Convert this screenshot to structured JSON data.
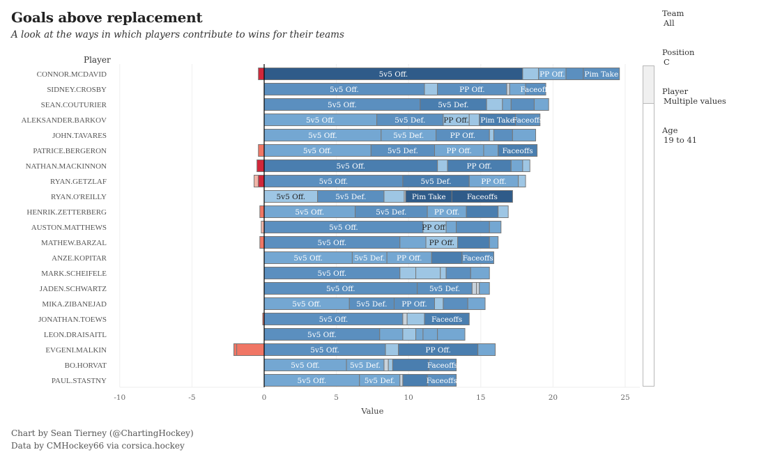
{
  "header": {
    "title": "Goals above replacement",
    "subtitle": "A look at the ways in which players contribute to wins for their teams"
  },
  "filters": [
    {
      "label": "Team",
      "value": "All"
    },
    {
      "label": "Position",
      "value": "C"
    },
    {
      "label": "Player",
      "value": "Multiple values"
    },
    {
      "label": "Age",
      "value": "19 to 41"
    }
  ],
  "footer": {
    "line1": "Chart by Sean Tierney (@ChartingHockey)",
    "line2": "Data by CMHockey66 via corsica.hockey"
  },
  "colors": {
    "dark_blue": "#2f5b89",
    "mid_blue": "#4a7eaf",
    "blue": "#5b8fbf",
    "light_blue": "#74a7d2",
    "pale_blue": "#9ec6e4",
    "grey": "#c9d3dc",
    "red": "#d0273a",
    "salmon": "#f07665",
    "pink": "#f0b5a8",
    "border": "#777777"
  },
  "chart_data": {
    "type": "bar",
    "orientation": "horizontal",
    "stacked": true,
    "title": "Goals above replacement",
    "xlabel": "Value",
    "ylabel": "Player",
    "xlim": [
      -11,
      26.8
    ],
    "xticks": [
      -10,
      -5,
      0,
      5,
      10,
      15,
      20,
      25
    ],
    "grid": true,
    "legend": "none",
    "categories": [
      "CONNOR.MCDAVID",
      "SIDNEY.CROSBY",
      "SEAN.COUTURIER",
      "ALEKSANDER.BARKOV",
      "JOHN.TAVARES",
      "PATRICE.BERGERON",
      "NATHAN.MACKINNON",
      "RYAN.GETZLAF",
      "RYAN.O'REILLY",
      "HENRIK.ZETTERBERG",
      "AUSTON.MATTHEWS",
      "MATHEW.BARZAL",
      "ANZE.KOPITAR",
      "MARK.SCHEIFELE",
      "JADEN.SCHWARTZ",
      "MIKA.ZIBANEJAD",
      "JONATHAN.TOEWS",
      "LEON.DRAISAITL",
      "EVGENI.MALKIN",
      "BO.HORVAT",
      "PAUL.STASTNY"
    ],
    "rows": [
      {
        "player": "CONNOR.MCDAVID",
        "segments": [
          {
            "from": -0.4,
            "to": 0,
            "c": "red",
            "label": ""
          },
          {
            "from": 0,
            "to": 17.9,
            "c": "dark_blue",
            "label": "5v5 Off."
          },
          {
            "from": 17.9,
            "to": 19.0,
            "c": "pale_blue",
            "label": ""
          },
          {
            "from": 19.0,
            "to": 20.9,
            "c": "light_blue",
            "label": "PP Off."
          },
          {
            "from": 20.9,
            "to": 22.1,
            "c": "blue",
            "label": ""
          },
          {
            "from": 22.1,
            "to": 24.6,
            "c": "blue",
            "label": "Pim Take"
          }
        ]
      },
      {
        "player": "SIDNEY.CROSBY",
        "segments": [
          {
            "from": 0,
            "to": 11.1,
            "c": "blue",
            "label": "5v5 Off."
          },
          {
            "from": 11.1,
            "to": 12.0,
            "c": "pale_blue",
            "label": ""
          },
          {
            "from": 12.0,
            "to": 16.8,
            "c": "blue",
            "label": "PP Off."
          },
          {
            "from": 16.8,
            "to": 17.0,
            "c": "grey",
            "label": ""
          },
          {
            "from": 17.0,
            "to": 18.1,
            "c": "light_blue",
            "label": ""
          },
          {
            "from": 18.1,
            "to": 19.5,
            "c": "blue",
            "label": "Faceoffs"
          }
        ]
      },
      {
        "player": "SEAN.COUTURIER",
        "segments": [
          {
            "from": 0,
            "to": 10.8,
            "c": "blue",
            "label": "5v5 Off."
          },
          {
            "from": 10.8,
            "to": 15.4,
            "c": "mid_blue",
            "label": "5v5 Def."
          },
          {
            "from": 15.4,
            "to": 16.5,
            "c": "pale_blue",
            "label": ""
          },
          {
            "from": 16.5,
            "to": 17.1,
            "c": "light_blue",
            "label": ""
          },
          {
            "from": 17.1,
            "to": 18.7,
            "c": "blue",
            "label": ""
          },
          {
            "from": 18.7,
            "to": 19.7,
            "c": "light_blue",
            "label": ""
          }
        ]
      },
      {
        "player": "ALEKSANDER.BARKOV",
        "segments": [
          {
            "from": 0,
            "to": 7.8,
            "c": "light_blue",
            "label": "5v5 Off."
          },
          {
            "from": 7.8,
            "to": 12.4,
            "c": "blue",
            "label": "5v5 Def."
          },
          {
            "from": 12.4,
            "to": 14.2,
            "c": "pale_blue",
            "label": "PP Off."
          },
          {
            "from": 14.2,
            "to": 14.9,
            "c": "pale_blue",
            "label": ""
          },
          {
            "from": 14.9,
            "to": 17.4,
            "c": "mid_blue",
            "label": "Pim Take"
          },
          {
            "from": 17.4,
            "to": 19.1,
            "c": "blue",
            "label": "Faceoffs"
          }
        ]
      },
      {
        "player": "JOHN.TAVARES",
        "segments": [
          {
            "from": 0,
            "to": 8.1,
            "c": "light_blue",
            "label": "5v5 Off."
          },
          {
            "from": 8.1,
            "to": 11.9,
            "c": "light_blue",
            "label": "5v5 Def."
          },
          {
            "from": 11.9,
            "to": 15.6,
            "c": "blue",
            "label": "PP Off."
          },
          {
            "from": 15.6,
            "to": 15.9,
            "c": "pale_blue",
            "label": ""
          },
          {
            "from": 15.9,
            "to": 17.2,
            "c": "blue",
            "label": ""
          },
          {
            "from": 17.2,
            "to": 18.8,
            "c": "light_blue",
            "label": ""
          }
        ]
      },
      {
        "player": "PATRICE.BERGERON",
        "segments": [
          {
            "from": -0.4,
            "to": 0,
            "c": "salmon",
            "label": ""
          },
          {
            "from": 0,
            "to": 7.4,
            "c": "light_blue",
            "label": "5v5 Off."
          },
          {
            "from": 7.4,
            "to": 11.8,
            "c": "blue",
            "label": "5v5 Def."
          },
          {
            "from": 11.8,
            "to": 15.2,
            "c": "light_blue",
            "label": "PP Off."
          },
          {
            "from": 15.2,
            "to": 16.2,
            "c": "light_blue",
            "label": ""
          },
          {
            "from": 16.2,
            "to": 18.9,
            "c": "mid_blue",
            "label": "Faceoffs"
          }
        ]
      },
      {
        "player": "NATHAN.MACKINNON",
        "segments": [
          {
            "from": -0.5,
            "to": 0,
            "c": "red",
            "label": ""
          },
          {
            "from": 0,
            "to": 12.0,
            "c": "mid_blue",
            "label": "5v5 Off."
          },
          {
            "from": 12.0,
            "to": 12.7,
            "c": "pale_blue",
            "label": ""
          },
          {
            "from": 12.7,
            "to": 17.1,
            "c": "mid_blue",
            "label": "PP Off."
          },
          {
            "from": 17.1,
            "to": 17.9,
            "c": "light_blue",
            "label": ""
          },
          {
            "from": 17.9,
            "to": 18.4,
            "c": "pale_blue",
            "label": ""
          }
        ]
      },
      {
        "player": "RYAN.GETZLAF",
        "segments": [
          {
            "from": -0.7,
            "to": -0.4,
            "c": "pink",
            "label": ""
          },
          {
            "from": -0.4,
            "to": 0,
            "c": "red",
            "label": ""
          },
          {
            "from": 0,
            "to": 9.6,
            "c": "blue",
            "label": "5v5 Off."
          },
          {
            "from": 9.6,
            "to": 14.2,
            "c": "mid_blue",
            "label": "5v5 Def."
          },
          {
            "from": 14.2,
            "to": 17.6,
            "c": "light_blue",
            "label": "PP Off."
          },
          {
            "from": 17.6,
            "to": 18.1,
            "c": "pale_blue",
            "label": ""
          }
        ]
      },
      {
        "player": "RYAN.O'REILLY",
        "segments": [
          {
            "from": 0,
            "to": 3.7,
            "c": "pale_blue",
            "label": "5v5 Off."
          },
          {
            "from": 3.7,
            "to": 8.3,
            "c": "blue",
            "label": "5v5 Def."
          },
          {
            "from": 8.3,
            "to": 9.7,
            "c": "pale_blue",
            "label": ""
          },
          {
            "from": 9.7,
            "to": 9.8,
            "c": "grey",
            "label": ""
          },
          {
            "from": 9.8,
            "to": 13.0,
            "c": "dark_blue",
            "label": "Pim Take"
          },
          {
            "from": 13.0,
            "to": 17.2,
            "c": "dark_blue",
            "label": "Faceoffs"
          }
        ]
      },
      {
        "player": "HENRIK.ZETTERBERG",
        "segments": [
          {
            "from": -0.3,
            "to": 0,
            "c": "salmon",
            "label": ""
          },
          {
            "from": 0,
            "to": 6.3,
            "c": "light_blue",
            "label": "5v5 Off."
          },
          {
            "from": 6.3,
            "to": 11.3,
            "c": "blue",
            "label": "5v5 Def."
          },
          {
            "from": 11.3,
            "to": 14.0,
            "c": "light_blue",
            "label": "PP Off."
          },
          {
            "from": 14.0,
            "to": 16.2,
            "c": "mid_blue",
            "label": ""
          },
          {
            "from": 16.2,
            "to": 16.9,
            "c": "pale_blue",
            "label": ""
          }
        ]
      },
      {
        "player": "AUSTON.MATTHEWS",
        "segments": [
          {
            "from": -0.2,
            "to": 0,
            "c": "pink",
            "label": ""
          },
          {
            "from": 0,
            "to": 11.0,
            "c": "blue",
            "label": "5v5 Off."
          },
          {
            "from": 11.0,
            "to": 12.6,
            "c": "pale_blue",
            "label": "PP Off."
          },
          {
            "from": 12.6,
            "to": 13.3,
            "c": "light_blue",
            "label": ""
          },
          {
            "from": 13.3,
            "to": 15.6,
            "c": "blue",
            "label": ""
          },
          {
            "from": 15.6,
            "to": 16.4,
            "c": "light_blue",
            "label": ""
          }
        ]
      },
      {
        "player": "MATHEW.BARZAL",
        "segments": [
          {
            "from": -0.3,
            "to": 0,
            "c": "salmon",
            "label": ""
          },
          {
            "from": 0,
            "to": 9.4,
            "c": "blue",
            "label": "5v5 Off."
          },
          {
            "from": 9.4,
            "to": 11.2,
            "c": "light_blue",
            "label": ""
          },
          {
            "from": 11.2,
            "to": 13.4,
            "c": "pale_blue",
            "label": "PP Off."
          },
          {
            "from": 13.4,
            "to": 15.6,
            "c": "mid_blue",
            "label": ""
          },
          {
            "from": 15.6,
            "to": 16.2,
            "c": "light_blue",
            "label": ""
          }
        ]
      },
      {
        "player": "ANZE.KOPITAR",
        "segments": [
          {
            "from": 0,
            "to": 6.1,
            "c": "light_blue",
            "label": "5v5 Off."
          },
          {
            "from": 6.1,
            "to": 8.5,
            "c": "light_blue",
            "label": "5v5 Def."
          },
          {
            "from": 8.5,
            "to": 11.6,
            "c": "light_blue",
            "label": "PP Off."
          },
          {
            "from": 11.6,
            "to": 13.7,
            "c": "mid_blue",
            "label": ""
          },
          {
            "from": 13.7,
            "to": 15.9,
            "c": "blue",
            "label": "Faceoffs"
          }
        ]
      },
      {
        "player": "MARK.SCHEIFELE",
        "segments": [
          {
            "from": 0,
            "to": 9.4,
            "c": "blue",
            "label": "5v5 Off."
          },
          {
            "from": 9.4,
            "to": 10.5,
            "c": "pale_blue",
            "label": ""
          },
          {
            "from": 10.5,
            "to": 12.2,
            "c": "pale_blue",
            "label": ""
          },
          {
            "from": 12.2,
            "to": 12.6,
            "c": "pale_blue",
            "label": ""
          },
          {
            "from": 12.6,
            "to": 14.3,
            "c": "blue",
            "label": ""
          },
          {
            "from": 14.3,
            "to": 15.6,
            "c": "light_blue",
            "label": ""
          }
        ]
      },
      {
        "player": "JADEN.SCHWARTZ",
        "segments": [
          {
            "from": 0,
            "to": 10.6,
            "c": "blue",
            "label": "5v5 Off."
          },
          {
            "from": 10.6,
            "to": 14.4,
            "c": "blue",
            "label": "5v5 Def."
          },
          {
            "from": 14.4,
            "to": 14.7,
            "c": "grey",
            "label": ""
          },
          {
            "from": 14.7,
            "to": 14.9,
            "c": "grey",
            "label": ""
          },
          {
            "from": 14.9,
            "to": 15.6,
            "c": "light_blue",
            "label": ""
          }
        ]
      },
      {
        "player": "MIKA.ZIBANEJAD",
        "segments": [
          {
            "from": 0,
            "to": 5.9,
            "c": "light_blue",
            "label": "5v5 Off."
          },
          {
            "from": 5.9,
            "to": 9.0,
            "c": "blue",
            "label": "5v5 Def."
          },
          {
            "from": 9.0,
            "to": 11.8,
            "c": "blue",
            "label": "PP Off."
          },
          {
            "from": 11.8,
            "to": 12.4,
            "c": "pale_blue",
            "label": ""
          },
          {
            "from": 12.4,
            "to": 14.1,
            "c": "blue",
            "label": ""
          },
          {
            "from": 14.1,
            "to": 15.3,
            "c": "light_blue",
            "label": ""
          }
        ]
      },
      {
        "player": "JONATHAN.TOEWS",
        "segments": [
          {
            "from": -0.1,
            "to": 0,
            "c": "salmon",
            "label": ""
          },
          {
            "from": 0,
            "to": 9.6,
            "c": "blue",
            "label": "5v5 Off."
          },
          {
            "from": 9.6,
            "to": 9.9,
            "c": "grey",
            "label": ""
          },
          {
            "from": 9.9,
            "to": 11.1,
            "c": "pale_blue",
            "label": ""
          },
          {
            "from": 11.1,
            "to": 14.2,
            "c": "mid_blue",
            "label": "Faceoffs"
          }
        ]
      },
      {
        "player": "LEON.DRAISAITL",
        "segments": [
          {
            "from": 0,
            "to": 8.0,
            "c": "blue",
            "label": "5v5 Off."
          },
          {
            "from": 8.0,
            "to": 9.6,
            "c": "light_blue",
            "label": ""
          },
          {
            "from": 9.6,
            "to": 10.5,
            "c": "pale_blue",
            "label": ""
          },
          {
            "from": 10.5,
            "to": 11.0,
            "c": "light_blue",
            "label": ""
          },
          {
            "from": 11.0,
            "to": 12.0,
            "c": "light_blue",
            "label": ""
          },
          {
            "from": 12.0,
            "to": 13.9,
            "c": "light_blue",
            "label": ""
          }
        ]
      },
      {
        "player": "EVGENI.MALKIN",
        "segments": [
          {
            "from": -2.1,
            "to": -1.9,
            "c": "salmon",
            "label": ""
          },
          {
            "from": -1.9,
            "to": 0,
            "c": "salmon",
            "label": ""
          },
          {
            "from": 0,
            "to": 8.4,
            "c": "blue",
            "label": "5v5 Off."
          },
          {
            "from": 8.4,
            "to": 9.3,
            "c": "pale_blue",
            "label": ""
          },
          {
            "from": 9.3,
            "to": 14.8,
            "c": "mid_blue",
            "label": "PP Off."
          },
          {
            "from": 14.8,
            "to": 16.0,
            "c": "light_blue",
            "label": ""
          }
        ]
      },
      {
        "player": "BO.HORVAT",
        "segments": [
          {
            "from": 0,
            "to": 5.7,
            "c": "light_blue",
            "label": "5v5 Off."
          },
          {
            "from": 5.7,
            "to": 8.3,
            "c": "light_blue",
            "label": "5v5 Def."
          },
          {
            "from": 8.3,
            "to": 8.6,
            "c": "grey",
            "label": ""
          },
          {
            "from": 8.6,
            "to": 8.9,
            "c": "pale_blue",
            "label": ""
          },
          {
            "from": 8.9,
            "to": 11.4,
            "c": "mid_blue",
            "label": ""
          },
          {
            "from": 11.4,
            "to": 13.3,
            "c": "blue",
            "label": "Faceoffs"
          }
        ]
      },
      {
        "player": "PAUL.STASTNY",
        "segments": [
          {
            "from": 0,
            "to": 6.6,
            "c": "light_blue",
            "label": "5v5 Off."
          },
          {
            "from": 6.6,
            "to": 9.4,
            "c": "light_blue",
            "label": "5v5 Def."
          },
          {
            "from": 9.4,
            "to": 9.6,
            "c": "grey",
            "label": ""
          },
          {
            "from": 9.6,
            "to": 11.3,
            "c": "mid_blue",
            "label": ""
          },
          {
            "from": 11.3,
            "to": 13.3,
            "c": "blue",
            "label": "Faceoffs"
          }
        ]
      }
    ]
  }
}
